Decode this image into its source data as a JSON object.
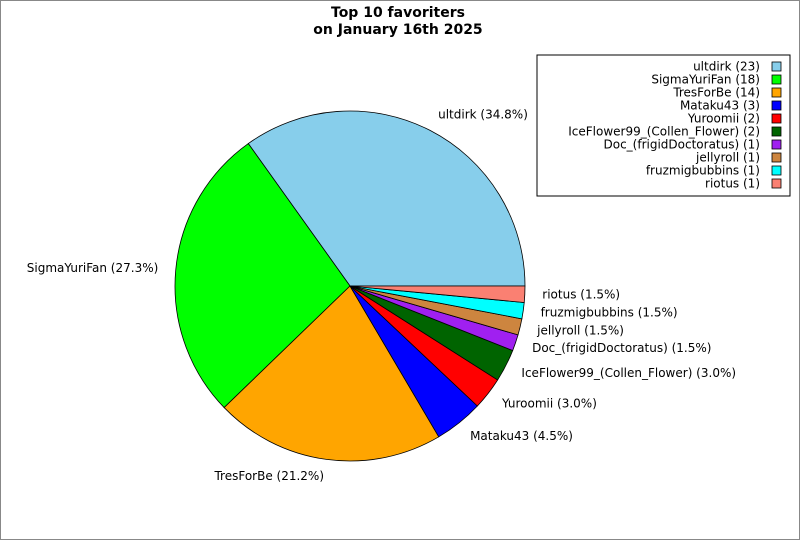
{
  "chart_data": {
    "type": "pie",
    "title": [
      "Top 10 favoriters",
      "on January 16th 2025"
    ],
    "categories": [
      "ultdirk",
      "SigmaYuriFan",
      "TresForBe",
      "Mataku43",
      "Yuroomii",
      "IceFlower99_(Collen_Flower)",
      "Doc_(frigidDoctoratus)",
      "jellyroll",
      "fruzmigbubbins",
      "riotus"
    ],
    "values": [
      34.8,
      27.3,
      21.2,
      4.5,
      3.0,
      3.0,
      1.5,
      1.5,
      1.5,
      1.5
    ],
    "value_labels": [
      "ultdirk (34.8%)",
      "SigmaYuriFan (27.3%)",
      "TresForBe (21.2%)",
      "Mataku43 (4.5%)",
      "Yuroomii (3.0%)",
      "IceFlower99_(Collen_Flower) (3.0%)",
      "Doc_(frigidDoctoratus) (1.5%)",
      "jellyroll (1.5%)",
      "fruzmigbubbins (1.5%)",
      "riotus (1.5%)"
    ],
    "legend_labels": [
      "ultdirk (23)",
      "SigmaYuriFan (18)",
      "TresForBe (14)",
      "Mataku43 (3)",
      "Yuroomii (2)",
      "IceFlower99_(Collen_Flower) (2)",
      "Doc_(frigidDoctoratus) (1)",
      "jellyroll (1)",
      "fruzmigbubbins (1)",
      "riotus (1)"
    ],
    "colors": [
      "#87ceeb",
      "#00ff00",
      "#ffa500",
      "#0000ff",
      "#ff0000",
      "#006400",
      "#a020f0",
      "#cd853f",
      "#00ffff",
      "#fa8072"
    ],
    "legend": "upper right"
  }
}
